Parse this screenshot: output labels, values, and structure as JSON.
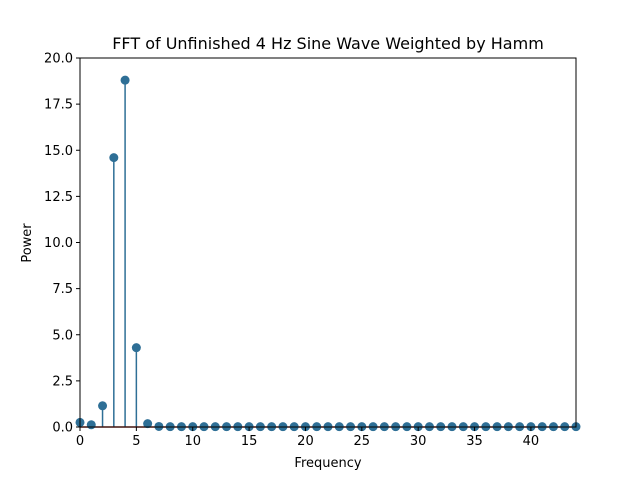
{
  "chart_data": {
    "type": "stem",
    "title": "FFT of Unfinished 4 Hz Sine Wave Weighted by Hamm",
    "xlabel": "Frequency",
    "ylabel": "Power",
    "xlim": [
      0,
      44
    ],
    "ylim": [
      0,
      20
    ],
    "xticks": [
      0,
      5,
      10,
      15,
      20,
      25,
      30,
      35,
      40
    ],
    "xtick_labels": [
      "0",
      "5",
      "10",
      "15",
      "20",
      "25",
      "30",
      "35",
      "40"
    ],
    "yticks": [
      0,
      2.5,
      5,
      7.5,
      10,
      12.5,
      15,
      17.5,
      20
    ],
    "ytick_labels": [
      "0.0",
      "2.5",
      "5.0",
      "7.5",
      "10.0",
      "12.5",
      "15.0",
      "17.5",
      "20.0"
    ],
    "grid": false,
    "color": "#2e6f96",
    "baseline_color": "#c0392b",
    "x": [
      0,
      1,
      2,
      3,
      4,
      5,
      6,
      7,
      8,
      9,
      10,
      11,
      12,
      13,
      14,
      15,
      16,
      17,
      18,
      19,
      20,
      21,
      22,
      23,
      24,
      25,
      26,
      27,
      28,
      29,
      30,
      31,
      32,
      33,
      34,
      35,
      36,
      37,
      38,
      39,
      40,
      41,
      42,
      43,
      44
    ],
    "values": [
      0.25,
      0.12,
      1.15,
      14.6,
      18.8,
      4.3,
      0.18,
      0.03,
      0.02,
      0.02,
      0.02,
      0.02,
      0.02,
      0.02,
      0.02,
      0.02,
      0.02,
      0.02,
      0.02,
      0.02,
      0.02,
      0.02,
      0.02,
      0.02,
      0.02,
      0.02,
      0.02,
      0.02,
      0.02,
      0.02,
      0.02,
      0.02,
      0.02,
      0.02,
      0.02,
      0.02,
      0.02,
      0.02,
      0.02,
      0.02,
      0.02,
      0.02,
      0.02,
      0.02,
      0.02
    ]
  }
}
